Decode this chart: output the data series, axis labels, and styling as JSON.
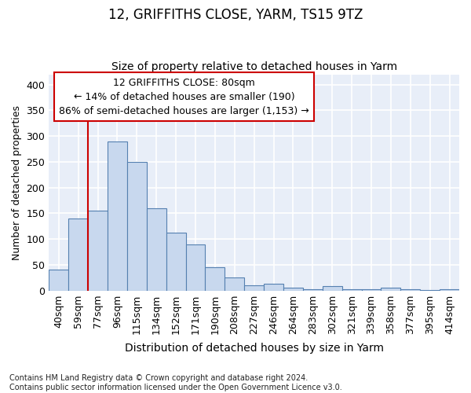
{
  "title": "12, GRIFFITHS CLOSE, YARM, TS15 9TZ",
  "subtitle": "Size of property relative to detached houses in Yarm",
  "xlabel": "Distribution of detached houses by size in Yarm",
  "ylabel": "Number of detached properties",
  "categories": [
    "40sqm",
    "59sqm",
    "77sqm",
    "96sqm",
    "115sqm",
    "134sqm",
    "152sqm",
    "171sqm",
    "190sqm",
    "208sqm",
    "227sqm",
    "246sqm",
    "264sqm",
    "283sqm",
    "302sqm",
    "321sqm",
    "339sqm",
    "358sqm",
    "377sqm",
    "395sqm",
    "414sqm"
  ],
  "values": [
    40,
    140,
    155,
    290,
    250,
    160,
    113,
    90,
    45,
    25,
    10,
    13,
    6,
    3,
    9,
    3,
    2,
    5,
    3,
    1,
    3
  ],
  "bar_color": "#c8d8ee",
  "bar_edge_color": "#5580b0",
  "vline_x_index": 2,
  "vline_color": "#cc0000",
  "annotation_line1": "12 GRIFFITHS CLOSE: 80sqm",
  "annotation_line2": "← 14% of detached houses are smaller (190)",
  "annotation_line3": "86% of semi-detached houses are larger (1,153) →",
  "box_edge_color": "#cc0000",
  "ylim": [
    0,
    420
  ],
  "yticks": [
    0,
    50,
    100,
    150,
    200,
    250,
    300,
    350,
    400
  ],
  "footer": "Contains HM Land Registry data © Crown copyright and database right 2024.\nContains public sector information licensed under the Open Government Licence v3.0.",
  "bg_color": "#e8eef8",
  "grid_color": "#ffffff",
  "title_fontsize": 12,
  "subtitle_fontsize": 10,
  "xlabel_fontsize": 10,
  "ylabel_fontsize": 9,
  "tick_fontsize": 9,
  "annot_fontsize": 9,
  "footer_fontsize": 7
}
